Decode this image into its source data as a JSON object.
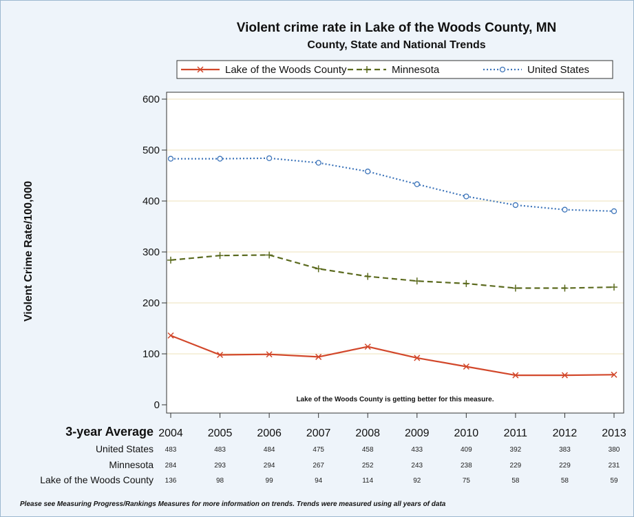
{
  "chart_data": {
    "type": "line",
    "title": "Violent crime rate in Lake of the Woods County, MN",
    "subtitle": "County, State and National Trends",
    "ylabel": "Violent Crime Rate/100,000",
    "xlabel": "",
    "x": [
      "2004",
      "2005",
      "2006",
      "2007",
      "2008",
      "2009",
      "2010",
      "2011",
      "2012",
      "2013"
    ],
    "ylim": [
      0,
      600
    ],
    "yticks": [
      0,
      100,
      200,
      300,
      400,
      500,
      600
    ],
    "grid": true,
    "legend_position": "top",
    "series": [
      {
        "name": "Lake of the Woods County",
        "values": [
          136,
          98,
          99,
          94,
          114,
          92,
          75,
          58,
          58,
          59
        ],
        "color": "#d2472a",
        "marker": "x",
        "dash": "solid"
      },
      {
        "name": "Minnesota",
        "values": [
          284,
          293,
          294,
          267,
          252,
          243,
          238,
          229,
          229,
          231
        ],
        "color": "#5b6a1e",
        "marker": "plus",
        "dash": "dashed"
      },
      {
        "name": "United States",
        "values": [
          483,
          483,
          484,
          475,
          458,
          433,
          409,
          392,
          383,
          380
        ],
        "color": "#3b73b9",
        "marker": "circle",
        "dash": "dotted"
      }
    ],
    "annotation": "Lake of the Woods County is getting better for this measure."
  },
  "table": {
    "header": "3-year Average",
    "rows": [
      {
        "label": "United States",
        "values": [
          "483",
          "483",
          "484",
          "475",
          "458",
          "433",
          "409",
          "392",
          "383",
          "380"
        ]
      },
      {
        "label": "Minnesota",
        "values": [
          "284",
          "293",
          "294",
          "267",
          "252",
          "243",
          "238",
          "229",
          "229",
          "231"
        ]
      },
      {
        "label": "Lake of the Woods County",
        "values": [
          "136",
          "98",
          "99",
          "94",
          "114",
          "92",
          "75",
          "58",
          "58",
          "59"
        ]
      }
    ]
  },
  "footnote": "Please see Measuring Progress/Rankings Measures for more information on trends. Trends were measured using all years of data"
}
